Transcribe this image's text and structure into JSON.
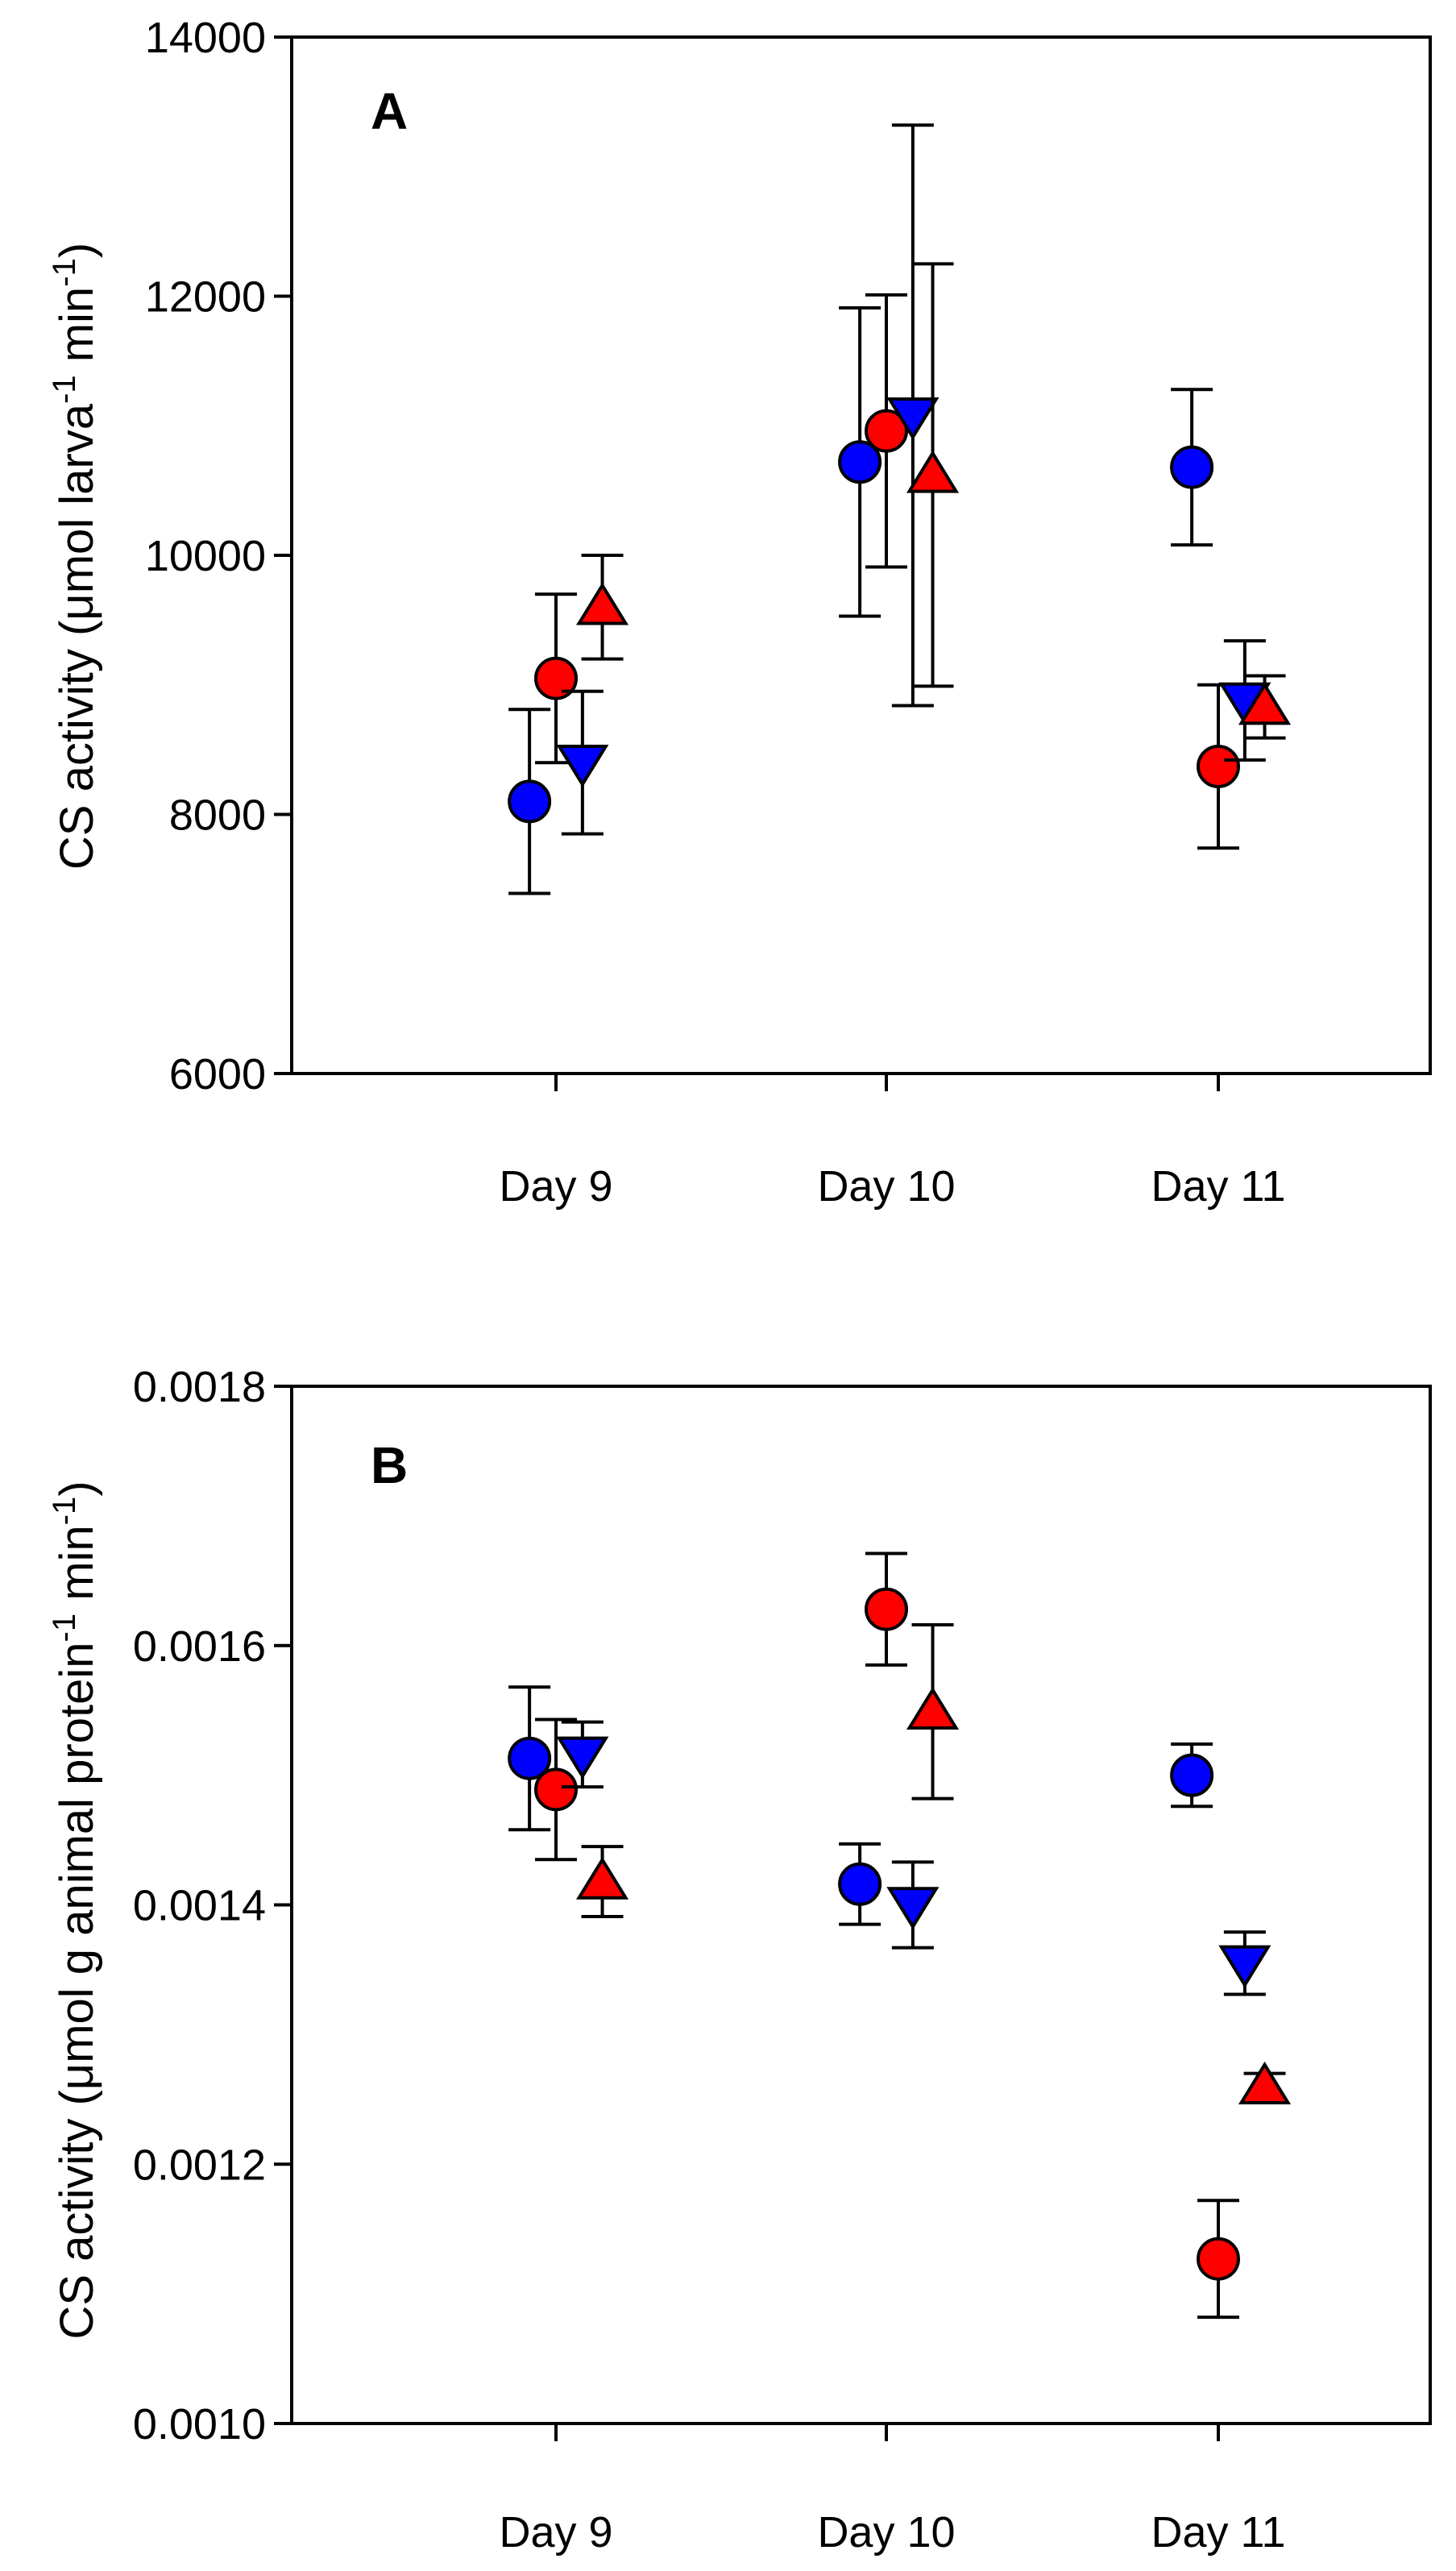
{
  "chart_data": [
    {
      "panel": "A",
      "type": "scatter",
      "title": "",
      "xlabel": "",
      "ylabel": {
        "parts": [
          {
            "text": "CS activity (",
            "sup": false
          },
          {
            "text": "μ",
            "sup": false
          },
          {
            "text": "mol larva",
            "sup": false
          },
          {
            "text": "-1",
            "sup": true
          },
          {
            "text": " min",
            "sup": false
          },
          {
            "text": "-1",
            "sup": true
          },
          {
            "text": ")",
            "sup": false
          }
        ]
      },
      "categories": [
        "Day 9",
        "Day 10",
        "Day 11"
      ],
      "ylim": [
        6000,
        14000
      ],
      "yticks": [
        {
          "value": 6000,
          "label": "6000"
        },
        {
          "value": 8000,
          "label": "8000"
        },
        {
          "value": 10000,
          "label": "10000"
        },
        {
          "value": 12000,
          "label": "12000"
        },
        {
          "value": 14000,
          "label": "14000"
        }
      ],
      "grid": false,
      "legend": "none",
      "series": [
        {
          "marker": "circle",
          "color": "#0000ff",
          "offset": -0.08,
          "values": [
            8100,
            10720,
            10680
          ],
          "errors": [
            710,
            1190,
            600
          ]
        },
        {
          "marker": "circle",
          "color": "#ff0000",
          "offset": 0.0,
          "values": [
            9050,
            10960,
            8370
          ],
          "errors": [
            650,
            1050,
            630
          ]
        },
        {
          "marker": "triangle-down",
          "color": "#0000ff",
          "offset": 0.08,
          "values": [
            8400,
            11080,
            8880
          ],
          "errors": [
            550,
            2240,
            460
          ]
        },
        {
          "marker": "triangle-up",
          "color": "#ff0000",
          "offset": 0.14,
          "values": [
            9600,
            10620,
            8830
          ],
          "errors": [
            400,
            1630,
            240
          ]
        }
      ]
    },
    {
      "panel": "B",
      "type": "scatter",
      "title": "",
      "xlabel": "",
      "ylabel": {
        "parts": [
          {
            "text": "CS activity (",
            "sup": false
          },
          {
            "text": "μ",
            "sup": false
          },
          {
            "text": "mol g animal protein",
            "sup": false
          },
          {
            "text": "-1",
            "sup": true
          },
          {
            "text": " min",
            "sup": false
          },
          {
            "text": "-1",
            "sup": true
          },
          {
            "text": ")",
            "sup": false
          }
        ]
      },
      "categories": [
        "Day 9",
        "Day 10",
        "Day 11"
      ],
      "ylim": [
        0.001,
        0.0018
      ],
      "yticks": [
        {
          "value": 0.001,
          "label": "0.0010"
        },
        {
          "value": 0.0012,
          "label": "0.0012"
        },
        {
          "value": 0.0014,
          "label": "0.0014"
        },
        {
          "value": 0.0016,
          "label": "0.0016"
        },
        {
          "value": 0.0018,
          "label": "0.0018"
        }
      ],
      "grid": false,
      "legend": "none",
      "series": [
        {
          "marker": "circle",
          "color": "#0000ff",
          "offset": -0.08,
          "values": [
            0.001513,
            0.001416,
            0.0015
          ],
          "errors": [
            5.5e-05,
            3.1e-05,
            2.4e-05
          ]
        },
        {
          "marker": "circle",
          "color": "#ff0000",
          "offset": 0.0,
          "values": [
            0.001489,
            0.001628,
            0.001127
          ],
          "errors": [
            5.4e-05,
            4.3e-05,
            4.5e-05
          ]
        },
        {
          "marker": "triangle-down",
          "color": "#0000ff",
          "offset": 0.08,
          "values": [
            0.001516,
            0.0014,
            0.001355
          ],
          "errors": [
            2.5e-05,
            3.3e-05,
            2.4e-05
          ]
        },
        {
          "marker": "triangle-up",
          "color": "#ff0000",
          "offset": 0.14,
          "values": [
            0.001418,
            0.001549,
            0.00126
          ],
          "errors": [
            2.7e-05,
            6.7e-05,
            1e-05
          ]
        }
      ]
    }
  ]
}
